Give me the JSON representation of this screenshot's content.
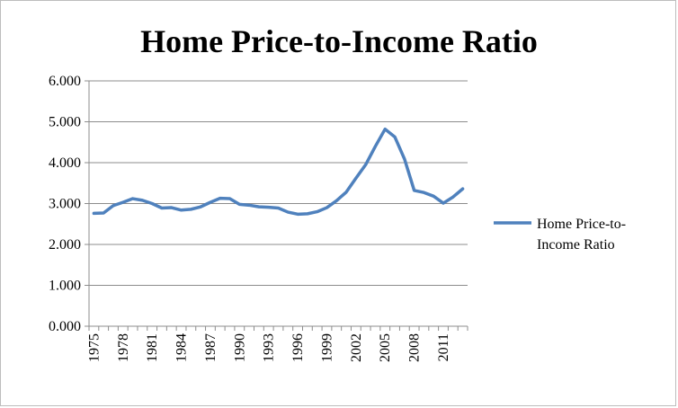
{
  "chart_data": {
    "type": "line",
    "title": "Home Price-to-Income Ratio",
    "xlabel": "",
    "ylabel": "",
    "ylim": [
      0,
      6
    ],
    "y_ticks": [
      "0.000",
      "1.000",
      "2.000",
      "3.000",
      "4.000",
      "5.000",
      "6.000"
    ],
    "x_ticks_shown": [
      "1975",
      "1978",
      "1981",
      "1984",
      "1987",
      "1990",
      "1993",
      "1996",
      "1999",
      "2002",
      "2005",
      "2008",
      "2011"
    ],
    "grid": "horizontal",
    "legend_position": "right",
    "x": [
      1975,
      1976,
      1977,
      1978,
      1979,
      1980,
      1981,
      1982,
      1983,
      1984,
      1985,
      1986,
      1987,
      1988,
      1989,
      1990,
      1991,
      1992,
      1993,
      1994,
      1995,
      1996,
      1997,
      1998,
      1999,
      2000,
      2001,
      2002,
      2003,
      2004,
      2005,
      2006,
      2007,
      2008,
      2009,
      2010,
      2011,
      2012,
      2013
    ],
    "series": [
      {
        "name": "Home Price-to-Income Ratio",
        "legend_lines": [
          "Home Price-to-",
          "Income Ratio"
        ],
        "color": "#4f81bd",
        "values": [
          2.76,
          2.77,
          2.95,
          3.03,
          3.12,
          3.08,
          3.0,
          2.89,
          2.9,
          2.84,
          2.86,
          2.92,
          3.03,
          3.13,
          3.12,
          2.98,
          2.96,
          2.92,
          2.91,
          2.89,
          2.79,
          2.74,
          2.75,
          2.8,
          2.9,
          3.07,
          3.28,
          3.62,
          3.95,
          4.4,
          4.82,
          4.63,
          4.09,
          3.32,
          3.27,
          3.18,
          3.01,
          3.16,
          3.36
        ]
      }
    ]
  }
}
